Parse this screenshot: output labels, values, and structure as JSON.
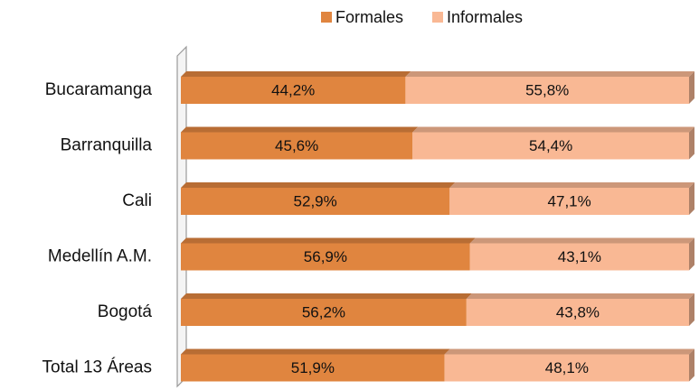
{
  "chart_data": {
    "type": "stacked-bar-100",
    "orientation": "horizontal",
    "categories": [
      "Bucaramanga",
      "Barranquilla",
      "Cali",
      "Medellín A.M.",
      "Bogotá",
      "Total 13 Áreas"
    ],
    "series": [
      {
        "name": "Formales",
        "color": "#e0853f",
        "values": [
          44.2,
          45.6,
          52.9,
          56.9,
          56.2,
          51.9
        ],
        "value_labels": [
          "44,2%",
          "45,6%",
          "52,9%",
          "56,9%",
          "56,2%",
          "51,9%"
        ]
      },
      {
        "name": "Informales",
        "color": "#f9b894",
        "values": [
          55.8,
          54.4,
          47.1,
          43.1,
          43.8,
          48.1
        ],
        "value_labels": [
          "55,8%",
          "54,4%",
          "47,1%",
          "43,1%",
          "43,8%",
          "48,1%"
        ]
      }
    ],
    "legend": "top"
  }
}
